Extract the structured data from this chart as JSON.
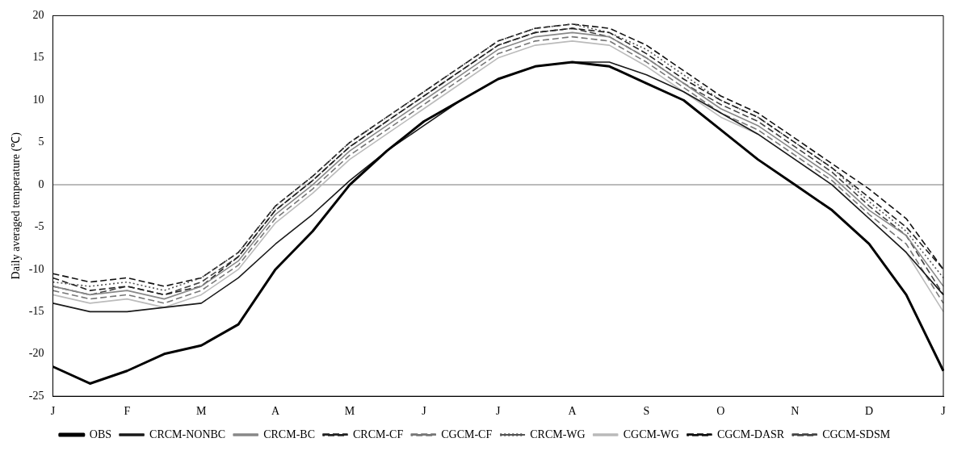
{
  "chart_data": {
    "type": "line",
    "ylabel": "Daily averaged temperature (℃)",
    "categories": [
      "J",
      null,
      "F",
      null,
      "M",
      null,
      "A",
      null,
      "M",
      null,
      "J",
      null,
      "J",
      null,
      "A",
      null,
      "S",
      null,
      "O",
      null,
      "N",
      null,
      "D",
      null,
      "J"
    ],
    "ylim": [
      -25,
      20
    ],
    "yticks": [
      -25,
      -20,
      -15,
      -10,
      -5,
      0,
      5,
      10,
      15,
      20
    ],
    "grid": false,
    "legend": "bottom",
    "marker": "none",
    "ref_lines": [
      {
        "axis": "y",
        "value": 0,
        "color": "#bbbbbb"
      }
    ],
    "series": [
      {
        "name": "OBS",
        "color": "#000000",
        "line_style": "solid",
        "values": [
          -21.5,
          -23.5,
          -22,
          -20,
          -19,
          -16.5,
          -10,
          -5.5,
          0,
          4,
          7.5,
          10,
          12.5,
          14,
          14.5,
          14,
          12,
          10,
          6.5,
          3,
          0,
          -3,
          -7,
          -13,
          -22
        ]
      },
      {
        "name": "CRCM-NONBC",
        "color": "#1a1a1a",
        "line_style": "solid",
        "values": [
          -14,
          -15,
          -15,
          -14.5,
          -14,
          -11,
          -7,
          -3.5,
          0.5,
          4,
          7,
          10,
          12.5,
          14,
          14.5,
          14.5,
          13,
          11,
          8.5,
          6,
          3,
          0,
          -4,
          -8,
          -13
        ]
      },
      {
        "name": "CRCM-BC",
        "color": "#888888",
        "line_style": "solid",
        "values": [
          -12,
          -13,
          -12.5,
          -13.5,
          -12,
          -9,
          -3.5,
          0,
          4,
          7,
          10,
          13,
          16,
          17.5,
          18,
          17.5,
          15,
          12,
          9,
          7,
          4,
          1,
          -3,
          -6,
          -12
        ]
      },
      {
        "name": "CRCM-CF",
        "color": "#222222",
        "line_style": "dashed",
        "values": [
          -11,
          -12.5,
          -12,
          -13,
          -12,
          -8.5,
          -3,
          0.5,
          4.5,
          7.5,
          10.5,
          13.5,
          16.5,
          18,
          18.5,
          18,
          15.5,
          12.5,
          10,
          8,
          5,
          2,
          -1.5,
          -5,
          -10
        ]
      },
      {
        "name": "CGCM-CF",
        "color": "#777777",
        "line_style": "dashed",
        "values": [
          -12.5,
          -13.5,
          -13,
          -14,
          -12.5,
          -9.5,
          -4,
          -0.5,
          3.5,
          6.5,
          9.5,
          12.5,
          15.5,
          17,
          17.5,
          17,
          14.5,
          11.5,
          8.5,
          6.5,
          3.5,
          0.5,
          -3.5,
          -7,
          -14
        ]
      },
      {
        "name": "CRCM-WG",
        "color": "#555555",
        "line_style": "dotted",
        "values": [
          -11.5,
          -12,
          -11.5,
          -12.5,
          -11,
          -8,
          -2.5,
          1,
          5,
          8,
          11,
          14,
          17,
          18.5,
          19,
          18,
          16,
          13,
          10,
          8,
          5,
          2,
          -2,
          -5.5,
          -11
        ]
      },
      {
        "name": "CGCM-WG",
        "color": "#bbbbbb",
        "line_style": "solid",
        "values": [
          -13,
          -14,
          -13.5,
          -14.5,
          -13,
          -10,
          -4.5,
          -1,
          3,
          6,
          9,
          12,
          15,
          16.5,
          17,
          16.5,
          14,
          11,
          8,
          6,
          3,
          0,
          -4,
          -8,
          -15
        ]
      },
      {
        "name": "CGCM-DASR",
        "color": "#111111",
        "line_style": "dashed",
        "values": [
          -10.5,
          -11.5,
          -11,
          -12,
          -11,
          -8,
          -2.5,
          1,
          5,
          8,
          11,
          14,
          17,
          18.5,
          19,
          18.5,
          16.5,
          13.5,
          10.5,
          8.5,
          5.5,
          2.5,
          -0.5,
          -4,
          -10
        ]
      },
      {
        "name": "CGCM-SDSM",
        "color": "#444444",
        "line_style": "dashed",
        "values": [
          -12,
          -13,
          -12,
          -13,
          -11.5,
          -8.5,
          -3,
          0.5,
          4.5,
          7.5,
          10.5,
          13.5,
          16.5,
          18,
          18.5,
          17.5,
          15,
          12,
          9.5,
          7.5,
          4.5,
          1.5,
          -2.5,
          -6,
          -13
        ]
      }
    ]
  }
}
